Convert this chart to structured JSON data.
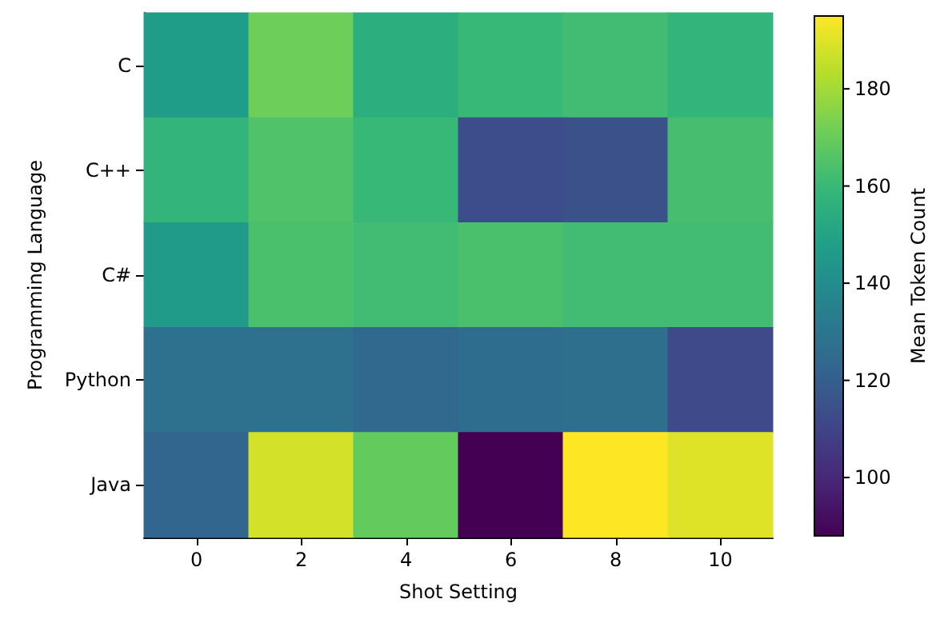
{
  "chart_data": {
    "type": "heatmap",
    "xlabel": "Shot Setting",
    "ylabel": "Programming Language",
    "clabel": "Mean Token Count",
    "categories": [
      "0",
      "2",
      "4",
      "6",
      "8",
      "10"
    ],
    "y_categories": [
      "C",
      "C++",
      "C#",
      "Python",
      "Java"
    ],
    "cells": [
      [
        147,
        171,
        155,
        160,
        162,
        158
      ],
      [
        158,
        165,
        160,
        113,
        115,
        163
      ],
      [
        146,
        164,
        162,
        164,
        162,
        162
      ],
      [
        128,
        128,
        124,
        126,
        127,
        112
      ],
      [
        123,
        188,
        169,
        88,
        195,
        190
      ]
    ],
    "clim": [
      88,
      195
    ],
    "cticks": [
      100,
      120,
      140,
      160,
      180
    ]
  }
}
